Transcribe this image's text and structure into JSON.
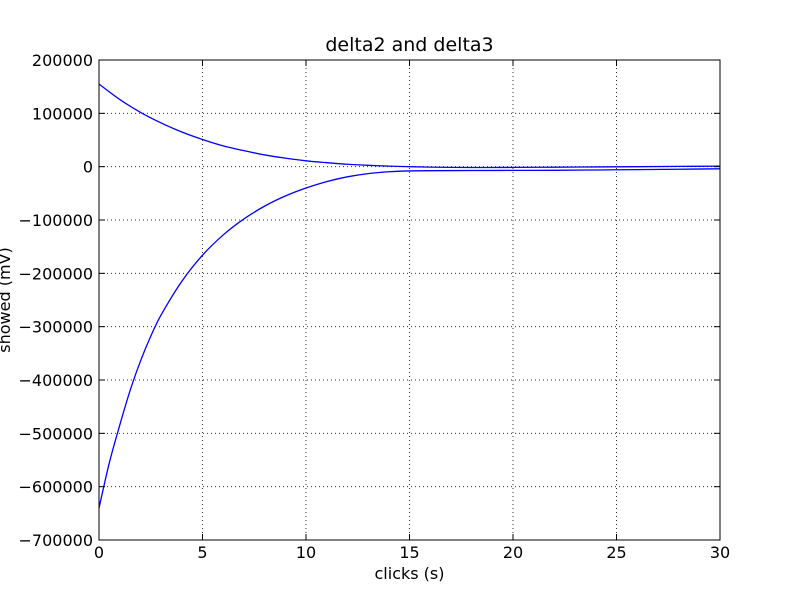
{
  "chart_data": {
    "type": "line",
    "title": "delta2 and delta3",
    "xlabel": "clicks (s)",
    "ylabel": "showed (mV)",
    "xlim": [
      0,
      30
    ],
    "ylim": [
      -700000,
      200000
    ],
    "xticks": [
      0,
      5,
      10,
      15,
      20,
      25,
      30
    ],
    "yticks": [
      200000,
      100000,
      0,
      -100000,
      -200000,
      -300000,
      -400000,
      -500000,
      -600000,
      -700000
    ],
    "xtick_labels": [
      "0",
      "5",
      "10",
      "15",
      "20",
      "25",
      "30"
    ],
    "ytick_labels": [
      "200000",
      "100000",
      "0",
      "−100000",
      "−200000",
      "−300000",
      "−400000",
      "−500000",
      "−600000",
      "−700000"
    ],
    "grid": true,
    "series": [
      {
        "color": "#0000ff",
        "x": [
          0,
          1,
          2,
          3,
          4,
          5,
          6,
          7,
          8,
          9,
          10,
          11,
          12,
          13,
          14,
          15,
          16,
          17,
          18,
          19,
          20,
          22,
          24,
          26,
          28,
          30
        ],
        "y": [
          155000,
          126000,
          102000,
          82000,
          65000,
          51000,
          39000,
          30000,
          22000,
          16000,
          11000,
          7500,
          4500,
          2500,
          1000,
          0,
          -800,
          -1300,
          -1500,
          -1500,
          -1400,
          -1000,
          -500,
          0,
          500,
          1000
        ]
      },
      {
        "color": "#0000ff",
        "x": [
          0,
          0.5,
          1,
          1.5,
          2,
          2.5,
          3,
          4,
          5,
          6,
          7,
          8,
          9,
          10,
          11,
          12,
          13,
          14,
          15,
          16,
          18,
          20,
          22,
          24,
          26,
          28,
          30
        ],
        "y": [
          -640000,
          -555000,
          -485000,
          -420000,
          -365000,
          -318000,
          -278000,
          -215000,
          -166000,
          -128000,
          -98000,
          -74000,
          -55000,
          -40000,
          -28000,
          -19000,
          -13000,
          -9500,
          -8000,
          -7500,
          -7200,
          -7000,
          -6800,
          -6200,
          -5500,
          -4800,
          -4000
        ]
      }
    ]
  }
}
